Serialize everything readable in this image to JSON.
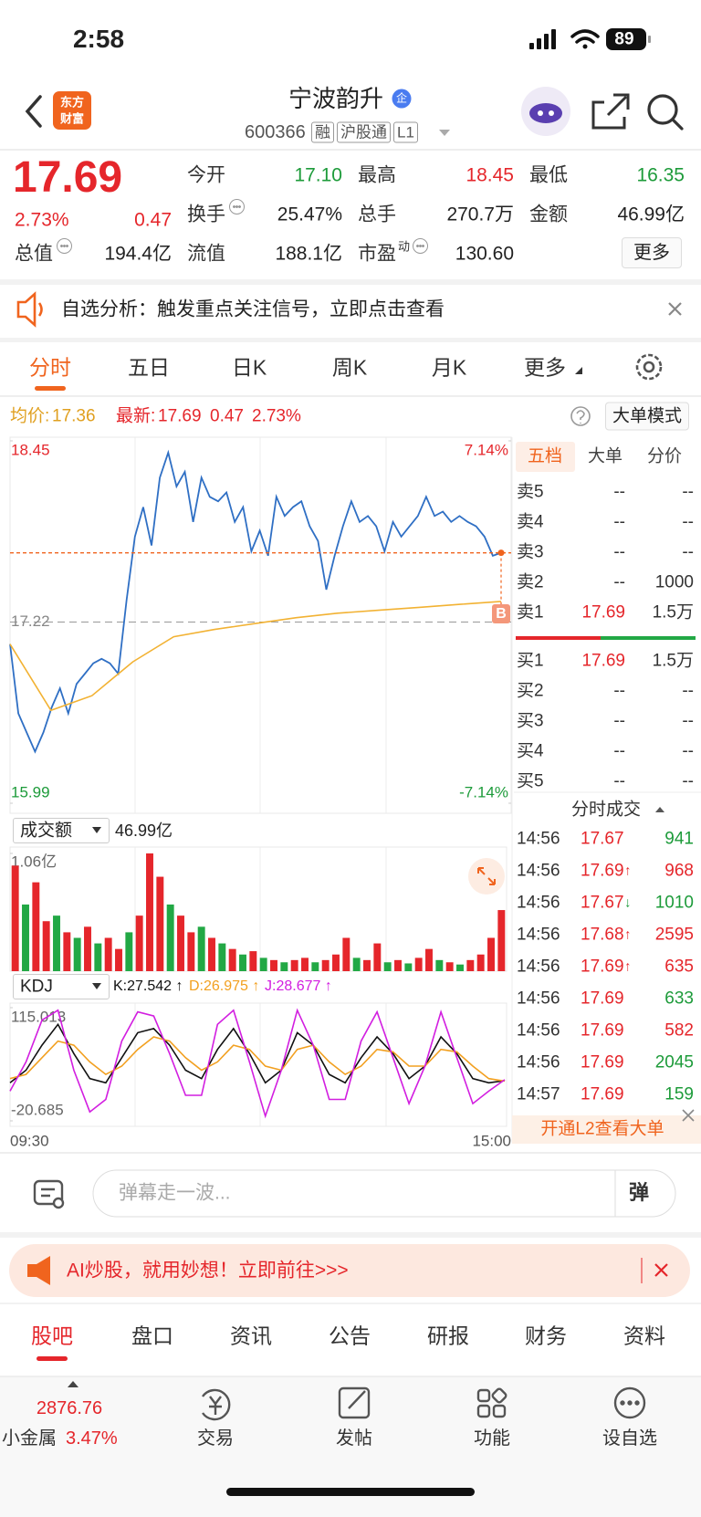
{
  "status": {
    "time": "2:58",
    "battery": "89"
  },
  "header": {
    "logo": [
      "东方",
      "财富"
    ],
    "title": "宁波韵升",
    "badge": "企",
    "code": "600366",
    "tags": [
      "融",
      "沪股通",
      "L1"
    ]
  },
  "quote": {
    "price": "17.69",
    "change_pct": "2.73%",
    "change": "0.47",
    "more": "更多",
    "fields": [
      {
        "label": "今开",
        "value": "17.10",
        "color": "#1d9b3a"
      },
      {
        "label": "最高",
        "value": "18.45",
        "color": "#e5262b"
      },
      {
        "label": "最低",
        "value": "16.35",
        "color": "#1d9b3a"
      },
      {
        "label": "换手",
        "value": "25.47%",
        "color": "#222222",
        "info_icon": true
      },
      {
        "label": "总手",
        "value": "270.7万",
        "color": "#222222"
      },
      {
        "label": "金额",
        "value": "46.99亿",
        "color": "#222222"
      },
      {
        "label": "总值",
        "value": "194.4亿",
        "color": "#222222",
        "info_icon": true
      },
      {
        "label": "流值",
        "value": "188.1亿",
        "color": "#222222"
      },
      {
        "label": "市盈",
        "sup": "动",
        "value": "130.60",
        "color": "#222222",
        "info_icon": true
      }
    ]
  },
  "notice": {
    "text": "自选分析：触发重点关注信号，立即点击查看"
  },
  "tabs": {
    "items": [
      "分时",
      "五日",
      "日K",
      "周K",
      "月K",
      "更多"
    ],
    "active": 0
  },
  "info": {
    "avg_label": "均价:",
    "avg": "17.36",
    "latest_label": "最新:",
    "latest": "17.69",
    "change": "0.47",
    "change_pct": "2.73%",
    "big_mode": "大单模式"
  },
  "chart_data": [
    {
      "type": "line",
      "ylim": [
        15.99,
        18.45
      ],
      "yticks": [
        18.45,
        17.22,
        15.99
      ],
      "ytick_colors": [
        "#e5262b",
        "#888888",
        "#1d9b3a"
      ],
      "y2lim": [
        -7.14,
        7.14
      ],
      "y2ticks": [
        {
          "value": 7.14,
          "label": "7.14%"
        },
        {
          "value": -7.14,
          "label": "-7.14%"
        }
      ],
      "y2tick_colors": [
        "#e5262b",
        "#1d9b3a"
      ],
      "marker": "B",
      "grid": true,
      "series": [
        {
          "color": "#2f6fc4",
          "values": [
            17.07,
            16.6,
            16.47,
            16.34,
            16.47,
            16.64,
            16.77,
            16.6,
            16.8,
            16.87,
            16.94,
            16.97,
            16.94,
            16.87,
            17.37,
            17.8,
            18.0,
            17.74,
            18.2,
            18.37,
            18.14,
            18.24,
            17.9,
            18.2,
            18.07,
            18.04,
            18.1,
            17.9,
            18.0,
            17.7,
            17.84,
            17.67,
            18.07,
            17.94,
            18.0,
            18.04,
            17.87,
            17.77,
            17.44,
            17.67,
            17.87,
            18.04,
            17.9,
            17.94,
            17.87,
            17.7,
            17.9,
            17.8,
            17.87,
            17.94,
            18.07,
            17.94,
            17.97,
            17.9,
            17.94,
            17.9,
            17.87,
            17.8,
            17.67,
            17.69
          ]
        },
        {
          "color": "#f2b233",
          "values": [
            17.07,
            16.62,
            16.72,
            16.95,
            17.12,
            17.17,
            17.21,
            17.25,
            17.28,
            17.3,
            17.32,
            17.34,
            17.36
          ]
        }
      ]
    },
    {
      "type": "bar",
      "selector": "成交额",
      "total": "46.99亿",
      "ylim": [
        0,
        1.06
      ],
      "yticks": [
        {
          "value": 1.06,
          "label": "1.06亿"
        }
      ],
      "colors": {
        "up": "#e5262b",
        "down": "#22a845"
      },
      "values": [
        0.95,
        0.6,
        0.8,
        0.45,
        0.5,
        0.35,
        0.3,
        0.4,
        0.25,
        0.3,
        0.2,
        0.35,
        0.5,
        1.06,
        0.85,
        0.6,
        0.5,
        0.35,
        0.4,
        0.3,
        0.25,
        0.2,
        0.15,
        0.18,
        0.12,
        0.1,
        0.08,
        0.1,
        0.12,
        0.08,
        0.1,
        0.15,
        0.3,
        0.12,
        0.1,
        0.25,
        0.08,
        0.1,
        0.07,
        0.12,
        0.2,
        0.1,
        0.08,
        0.06,
        0.1,
        0.15,
        0.3,
        0.55
      ],
      "up": [
        true,
        false,
        true,
        true,
        false,
        true,
        false,
        true,
        false,
        true,
        true,
        false,
        true,
        true,
        true,
        false,
        true,
        true,
        false,
        true,
        false,
        true,
        false,
        true,
        false,
        true,
        false,
        true,
        true,
        false,
        true,
        true,
        true,
        false,
        true,
        true,
        false,
        true,
        false,
        true,
        true,
        false,
        true,
        false,
        true,
        true,
        true,
        true
      ]
    },
    {
      "type": "line",
      "selector": "KDJ",
      "ylim": [
        -20.685,
        115.013
      ],
      "yticks": [
        115.013,
        -20.685
      ],
      "x_labels": [
        "09:30",
        "15:00"
      ],
      "series": [
        {
          "label": "K:27.542 ↑",
          "color": "#111111",
          "values": [
            25,
            40,
            70,
            95,
            60,
            30,
            25,
            55,
            85,
            90,
            70,
            40,
            30,
            65,
            90,
            60,
            25,
            40,
            85,
            70,
            35,
            25,
            55,
            80,
            60,
            30,
            45,
            80,
            60,
            30,
            25,
            27.542
          ]
        },
        {
          "label": "D:26.975 ↑",
          "color": "#f2a020",
          "values": [
            30,
            35,
            55,
            75,
            70,
            50,
            35,
            45,
            65,
            80,
            75,
            55,
            40,
            50,
            70,
            65,
            45,
            40,
            65,
            70,
            50,
            35,
            45,
            65,
            62,
            45,
            45,
            65,
            62,
            45,
            30,
            26.975
          ]
        },
        {
          "label": "J:28.677 ↑",
          "color": "#d21ee0",
          "values": [
            15,
            50,
            100,
            112,
            40,
            -10,
            5,
            75,
            110,
            105,
            60,
            10,
            10,
            95,
            112,
            50,
            -15,
            40,
            112,
            70,
            5,
            5,
            75,
            110,
            55,
            0,
            45,
            110,
            55,
            0,
            15,
            28.677
          ]
        }
      ]
    }
  ],
  "order_book": {
    "tabs": [
      "五档",
      "大单",
      "分价"
    ],
    "active": 0,
    "asks": [
      {
        "label": "卖5",
        "price": "--",
        "volume": "--"
      },
      {
        "label": "卖4",
        "price": "--",
        "volume": "--"
      },
      {
        "label": "卖3",
        "price": "--",
        "volume": "--"
      },
      {
        "label": "卖2",
        "price": "--",
        "volume": "1000"
      },
      {
        "label": "卖1",
        "price": "17.69",
        "volume": "1.5万"
      }
    ],
    "bids": [
      {
        "label": "买1",
        "price": "17.69",
        "volume": "1.5万"
      },
      {
        "label": "买2",
        "price": "--",
        "volume": "--"
      },
      {
        "label": "买3",
        "price": "--",
        "volume": "--"
      },
      {
        "label": "买4",
        "price": "--",
        "volume": "--"
      },
      {
        "label": "买5",
        "price": "--",
        "volume": "--"
      }
    ]
  },
  "trades": {
    "title": "分时成交",
    "colors": {
      "buy": "#e5262b",
      "sell": "#1d9b3a"
    },
    "rows": [
      {
        "time": "14:56",
        "price": "17.67",
        "volume": "941",
        "side": "sell"
      },
      {
        "time": "14:56",
        "price": "17.69",
        "arrow": "↑",
        "volume": "968",
        "side": "buy"
      },
      {
        "time": "14:56",
        "price": "17.67",
        "arrow": "↓",
        "volume": "1010",
        "side": "sell"
      },
      {
        "time": "14:56",
        "price": "17.68",
        "arrow": "↑",
        "volume": "2595",
        "side": "buy"
      },
      {
        "time": "14:56",
        "price": "17.69",
        "arrow": "↑",
        "volume": "635",
        "side": "buy"
      },
      {
        "time": "14:56",
        "price": "17.69",
        "volume": "633",
        "side": "sell"
      },
      {
        "time": "14:56",
        "price": "17.69",
        "volume": "582",
        "side": "buy"
      },
      {
        "time": "14:56",
        "price": "17.69",
        "volume": "2045",
        "side": "sell"
      },
      {
        "time": "14:57",
        "price": "17.69",
        "volume": "159",
        "side": "sell"
      }
    ],
    "l2": "开通L2查看大单"
  },
  "comment": {
    "placeholder": "弹幕走一波...",
    "button": "弹"
  },
  "ad": {
    "text": "AI炒股，就用妙想！立即前往>>>"
  },
  "bottom_tabs": {
    "items": [
      "股吧",
      "盘口",
      "资讯",
      "公告",
      "研报",
      "财务",
      "资料"
    ],
    "active": 0
  },
  "nav": {
    "index_value": "2876.76",
    "index_name": "小金属",
    "index_pct": "3.47%",
    "items": [
      "交易",
      "发帖",
      "功能",
      "设自选"
    ]
  }
}
